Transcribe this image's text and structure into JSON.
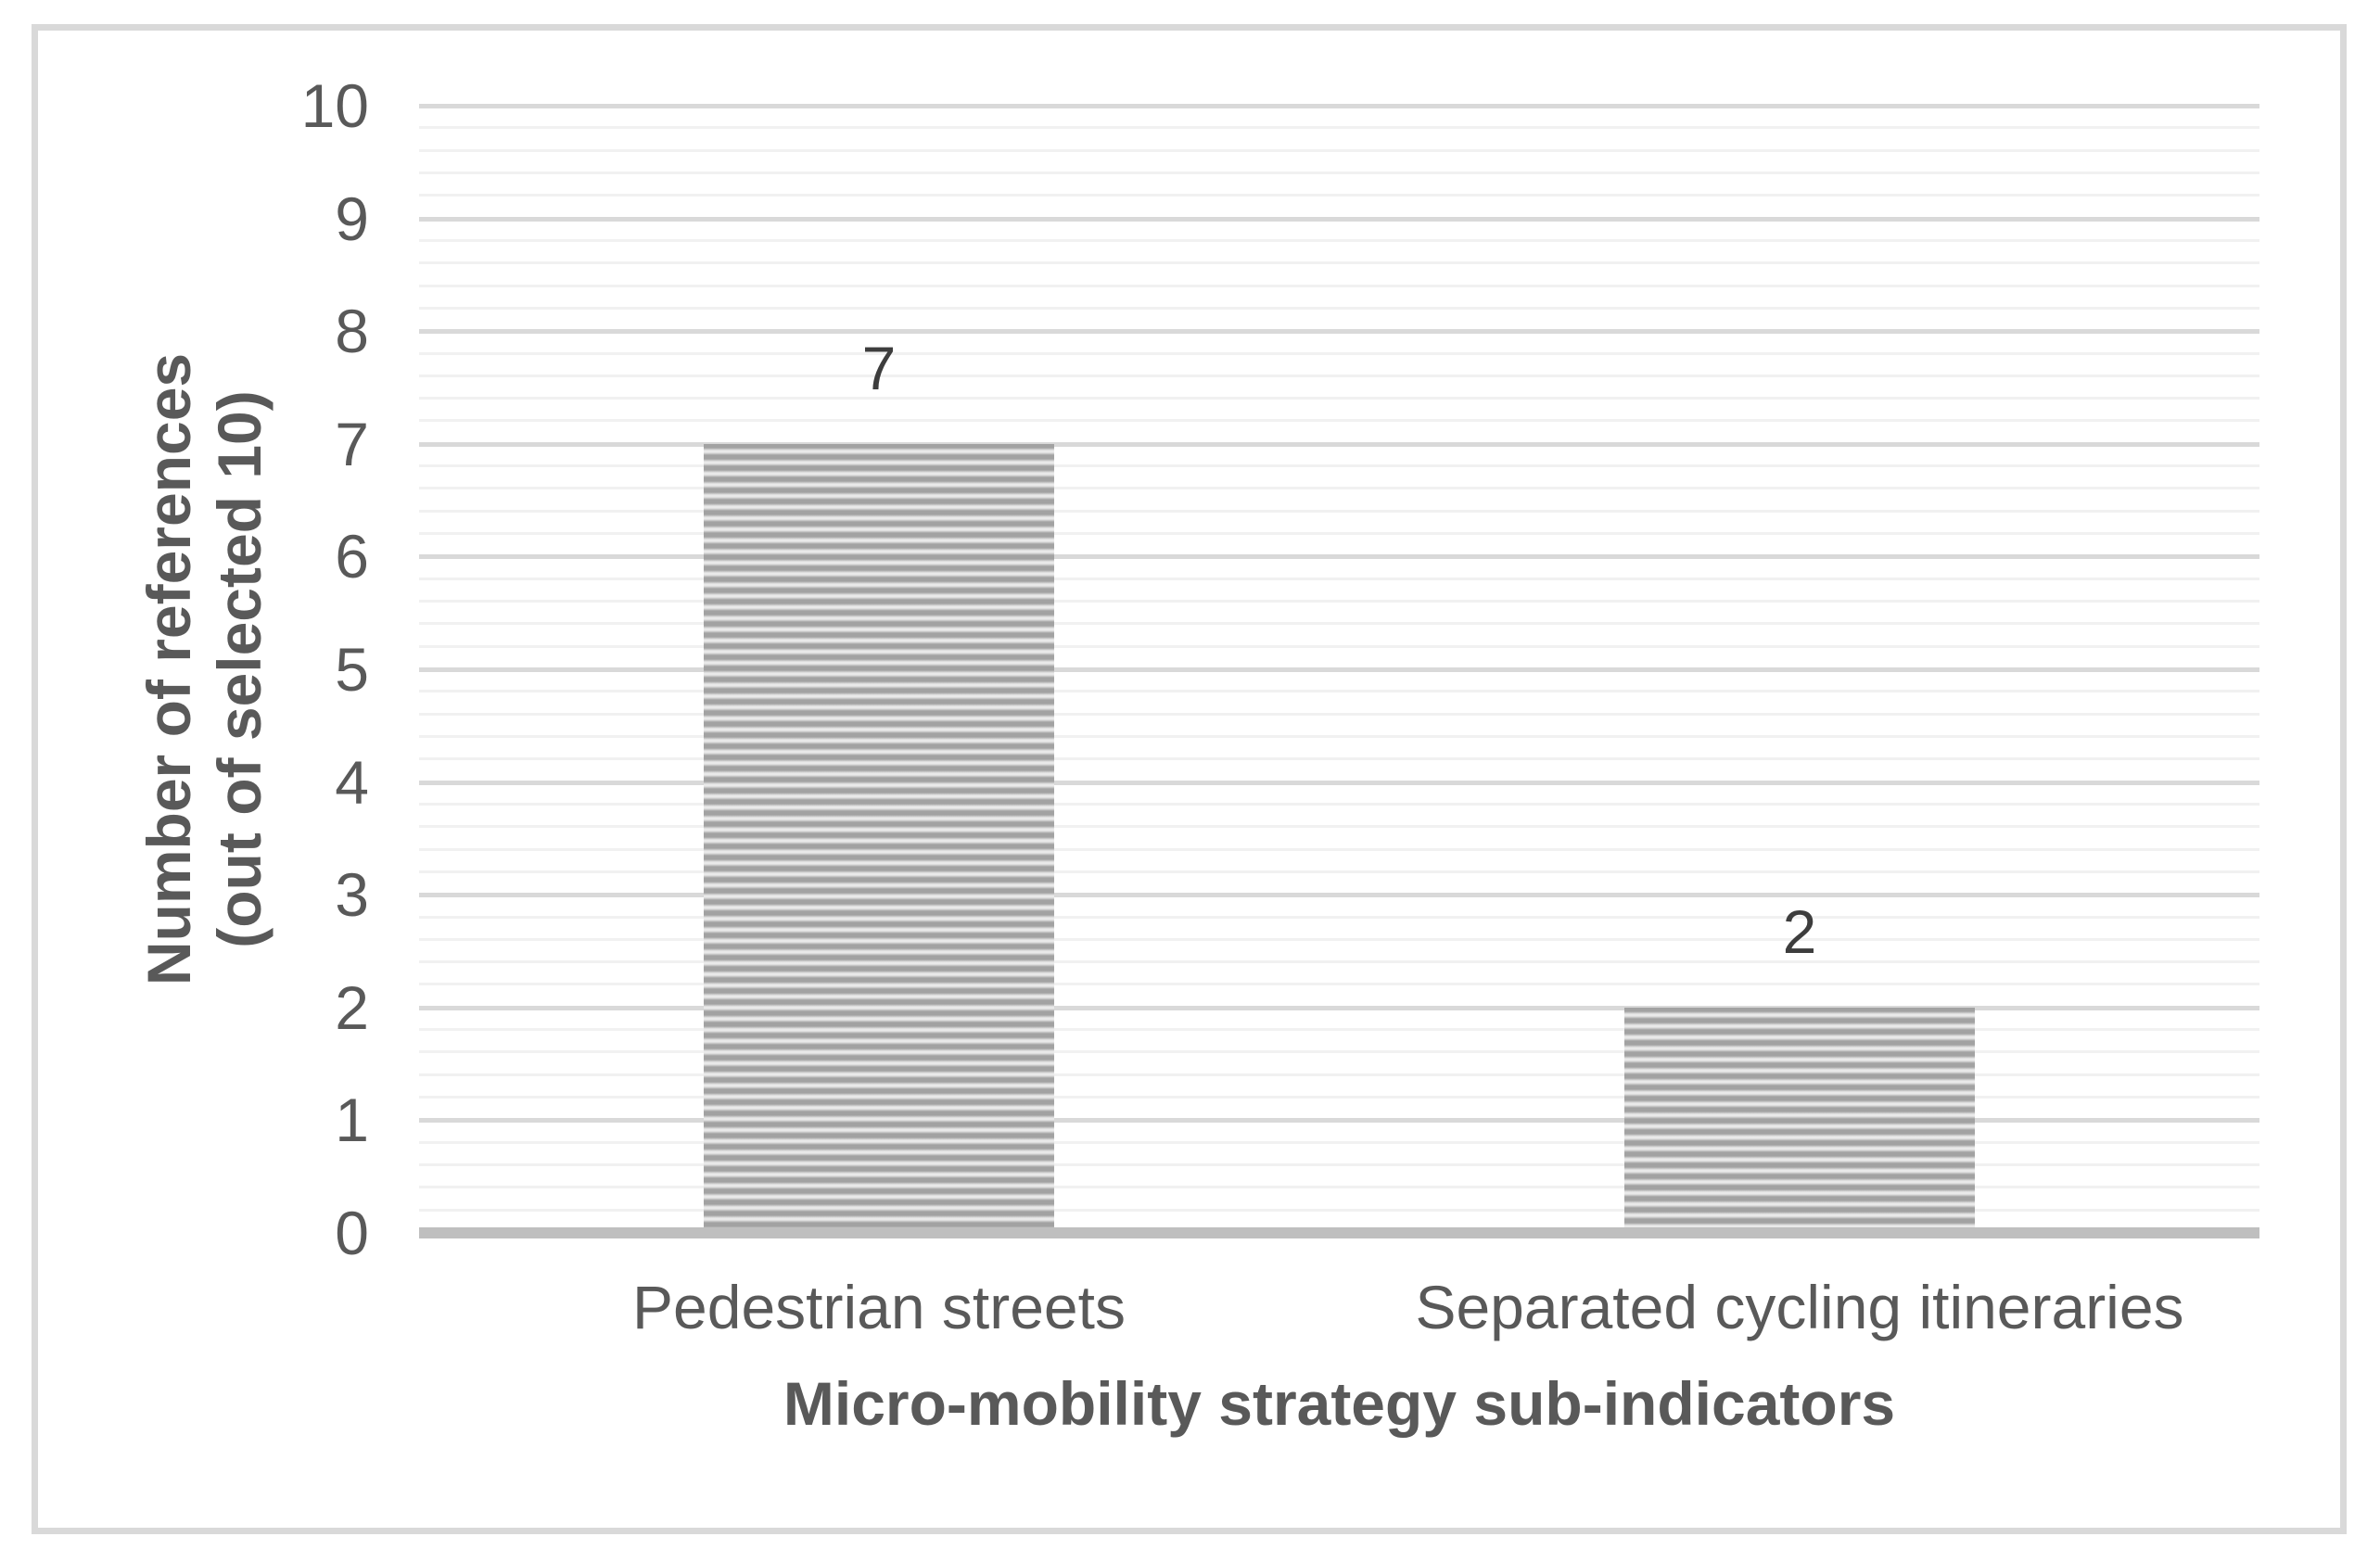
{
  "chart_data": {
    "type": "bar",
    "categories": [
      "Pedestrian streets",
      "Separated cycling itineraries"
    ],
    "values": [
      7,
      2
    ],
    "data_labels": [
      "7",
      "2"
    ],
    "title": "",
    "xlabel": "Micro-mobility strategy sub-indicators",
    "ylabel_line1": "Number of references",
    "ylabel_line2": "(out of selected 10)",
    "ylim": [
      0,
      10
    ],
    "ytick_interval": 1,
    "yminor_interval": 0.2,
    "ytick_labels": [
      "0",
      "1",
      "2",
      "3",
      "4",
      "5",
      "6",
      "7",
      "8",
      "9",
      "10"
    ],
    "grid": {
      "orientation": "horizontal",
      "major": true,
      "minor": true
    },
    "legend": null,
    "bar_style": "horizontal-stripe-hatch",
    "colors": {
      "major_gridline": "#d9d9d9",
      "minor_gridline": "#f1f1f1",
      "axis_line": "#bfbfbf",
      "bar_stripe_dark": "#a2a2a2",
      "bar_stripe_light": "#e9e9e9",
      "tick_text": "#595959",
      "title_text": "#595959",
      "data_label_text": "#3d3d3d",
      "frame_border": "#d9d9d9"
    }
  }
}
